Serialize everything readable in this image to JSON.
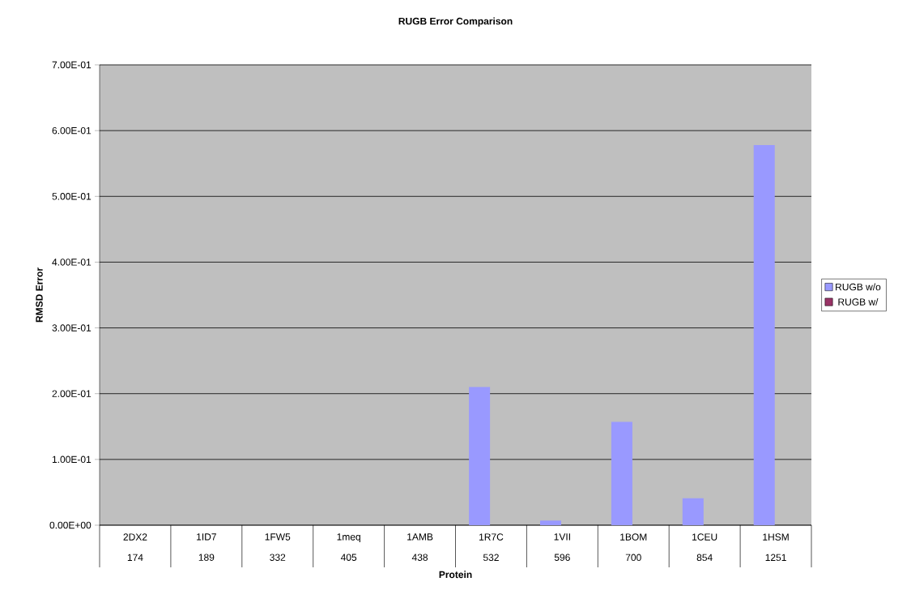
{
  "chart_data": {
    "type": "bar",
    "title": "RUGB Error Comparison",
    "xlabel": "Protein",
    "ylabel": "RMSD Error",
    "categories": [
      "2DX2 174",
      "1ID7 189",
      "1FW5 332",
      "1meq 405",
      "1AMB 438",
      "1R7C 532",
      "1VII 596",
      "1BOM 700",
      "1CEU 854",
      "1HSM 1251"
    ],
    "series": [
      {
        "name": "RUGB w/o",
        "color": "#9999ff",
        "values": [
          0,
          0,
          0,
          0,
          0,
          0.21,
          0.007,
          0.157,
          0.041,
          0.578
        ]
      },
      {
        "name": "RUGB w/",
        "color": "#993366",
        "values": [
          0,
          0,
          0,
          0,
          0,
          0,
          0,
          0,
          0,
          0
        ]
      }
    ],
    "ylim": [
      0,
      0.7
    ],
    "yticks": [
      {
        "value": 0,
        "label": "0.00E+00"
      },
      {
        "value": 0.1,
        "label": "1.00E-01"
      },
      {
        "value": 0.2,
        "label": "2.00E-01"
      },
      {
        "value": 0.3,
        "label": "3.00E-01"
      },
      {
        "value": 0.4,
        "label": "4.00E-01"
      },
      {
        "value": 0.5,
        "label": "5.00E-01"
      },
      {
        "value": 0.6,
        "label": "6.00E-01"
      },
      {
        "value": 0.7,
        "label": "7.00E-01"
      }
    ],
    "grid": "y",
    "legend": "right"
  }
}
